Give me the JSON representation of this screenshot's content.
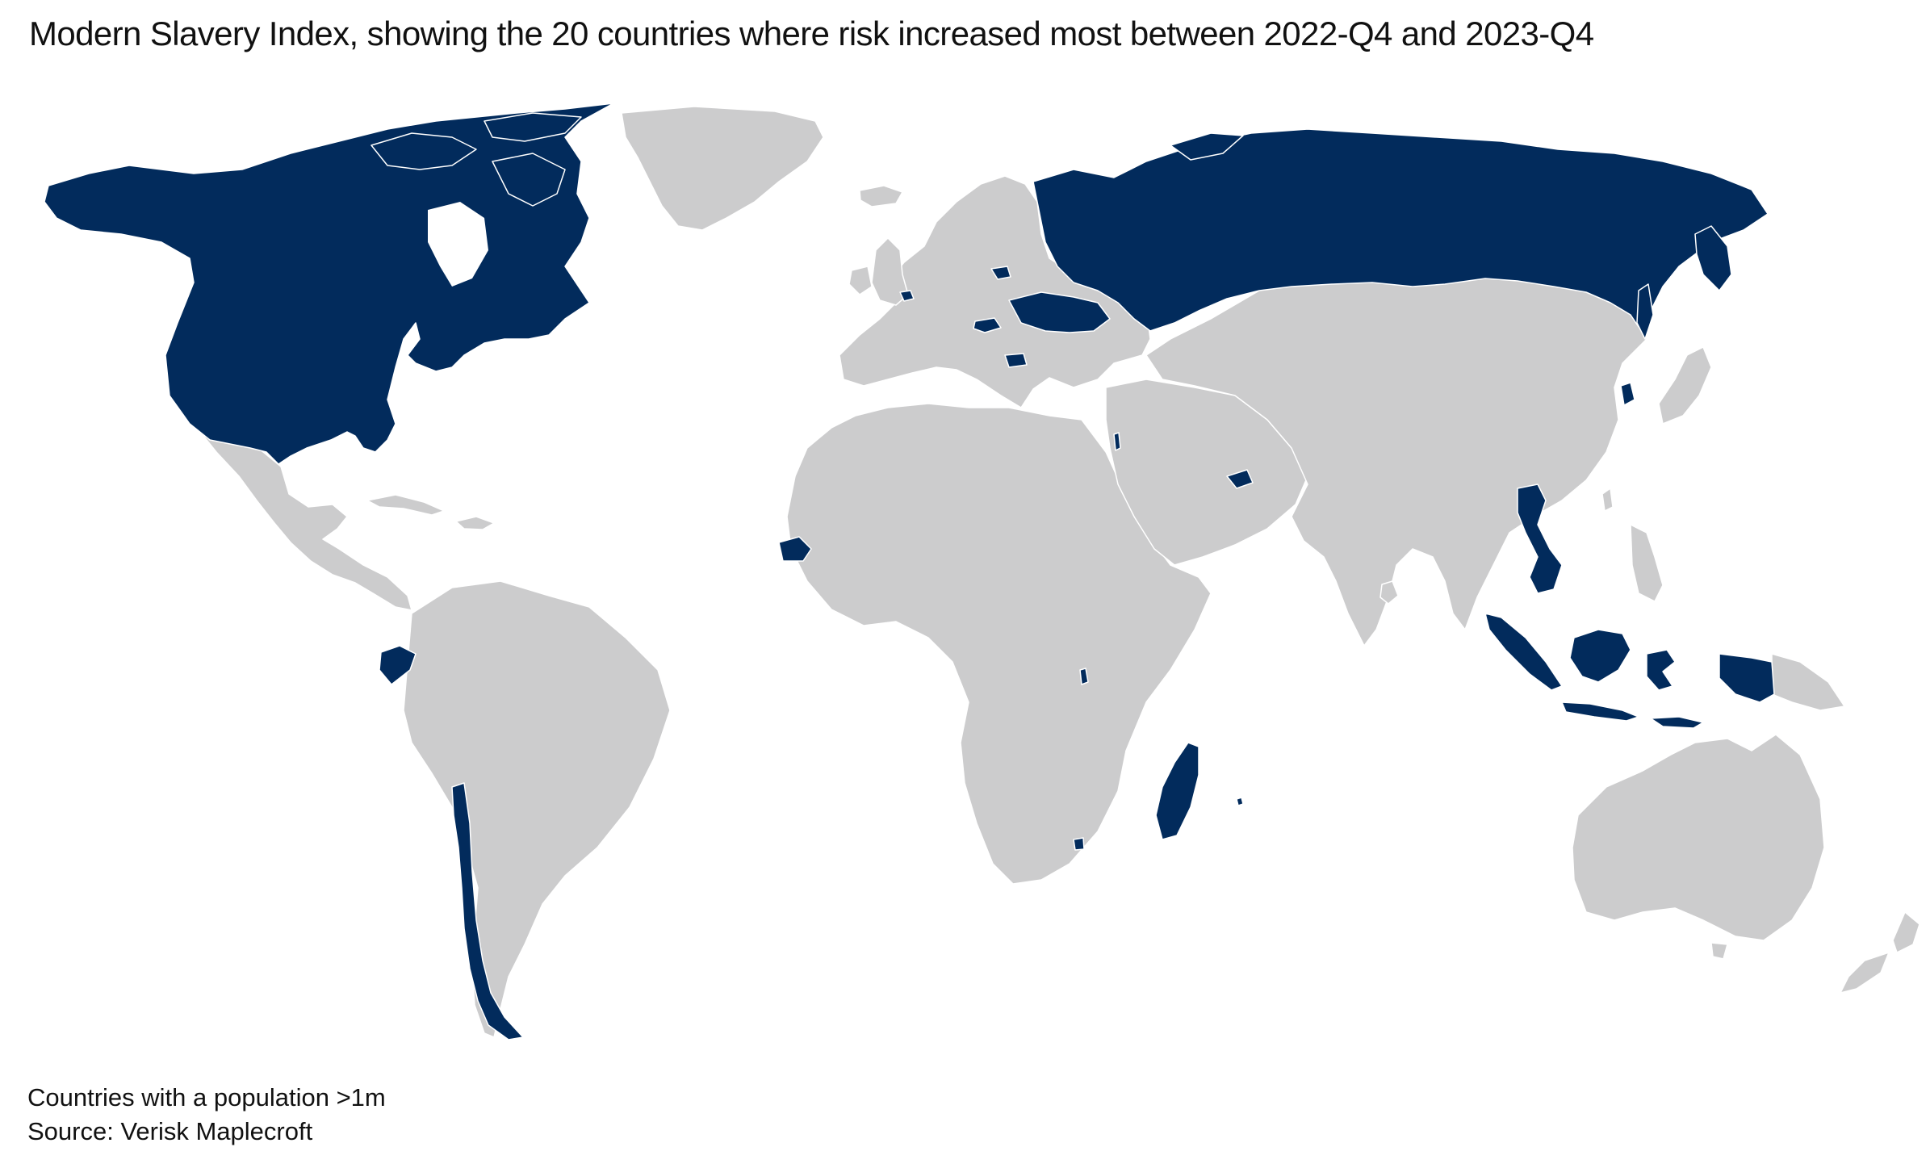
{
  "title": "Modern Slavery Index, showing the 20 countries where risk increased most between 2022-Q4 and 2023-Q4",
  "footnotes": {
    "population_note": "Countries with a population >1m",
    "source": "Source: Verisk Maplecroft"
  },
  "colors": {
    "highlight": "#022b5c",
    "other_land": "#cccccd",
    "border": "#ffffff",
    "background": "#ffffff"
  }
}
